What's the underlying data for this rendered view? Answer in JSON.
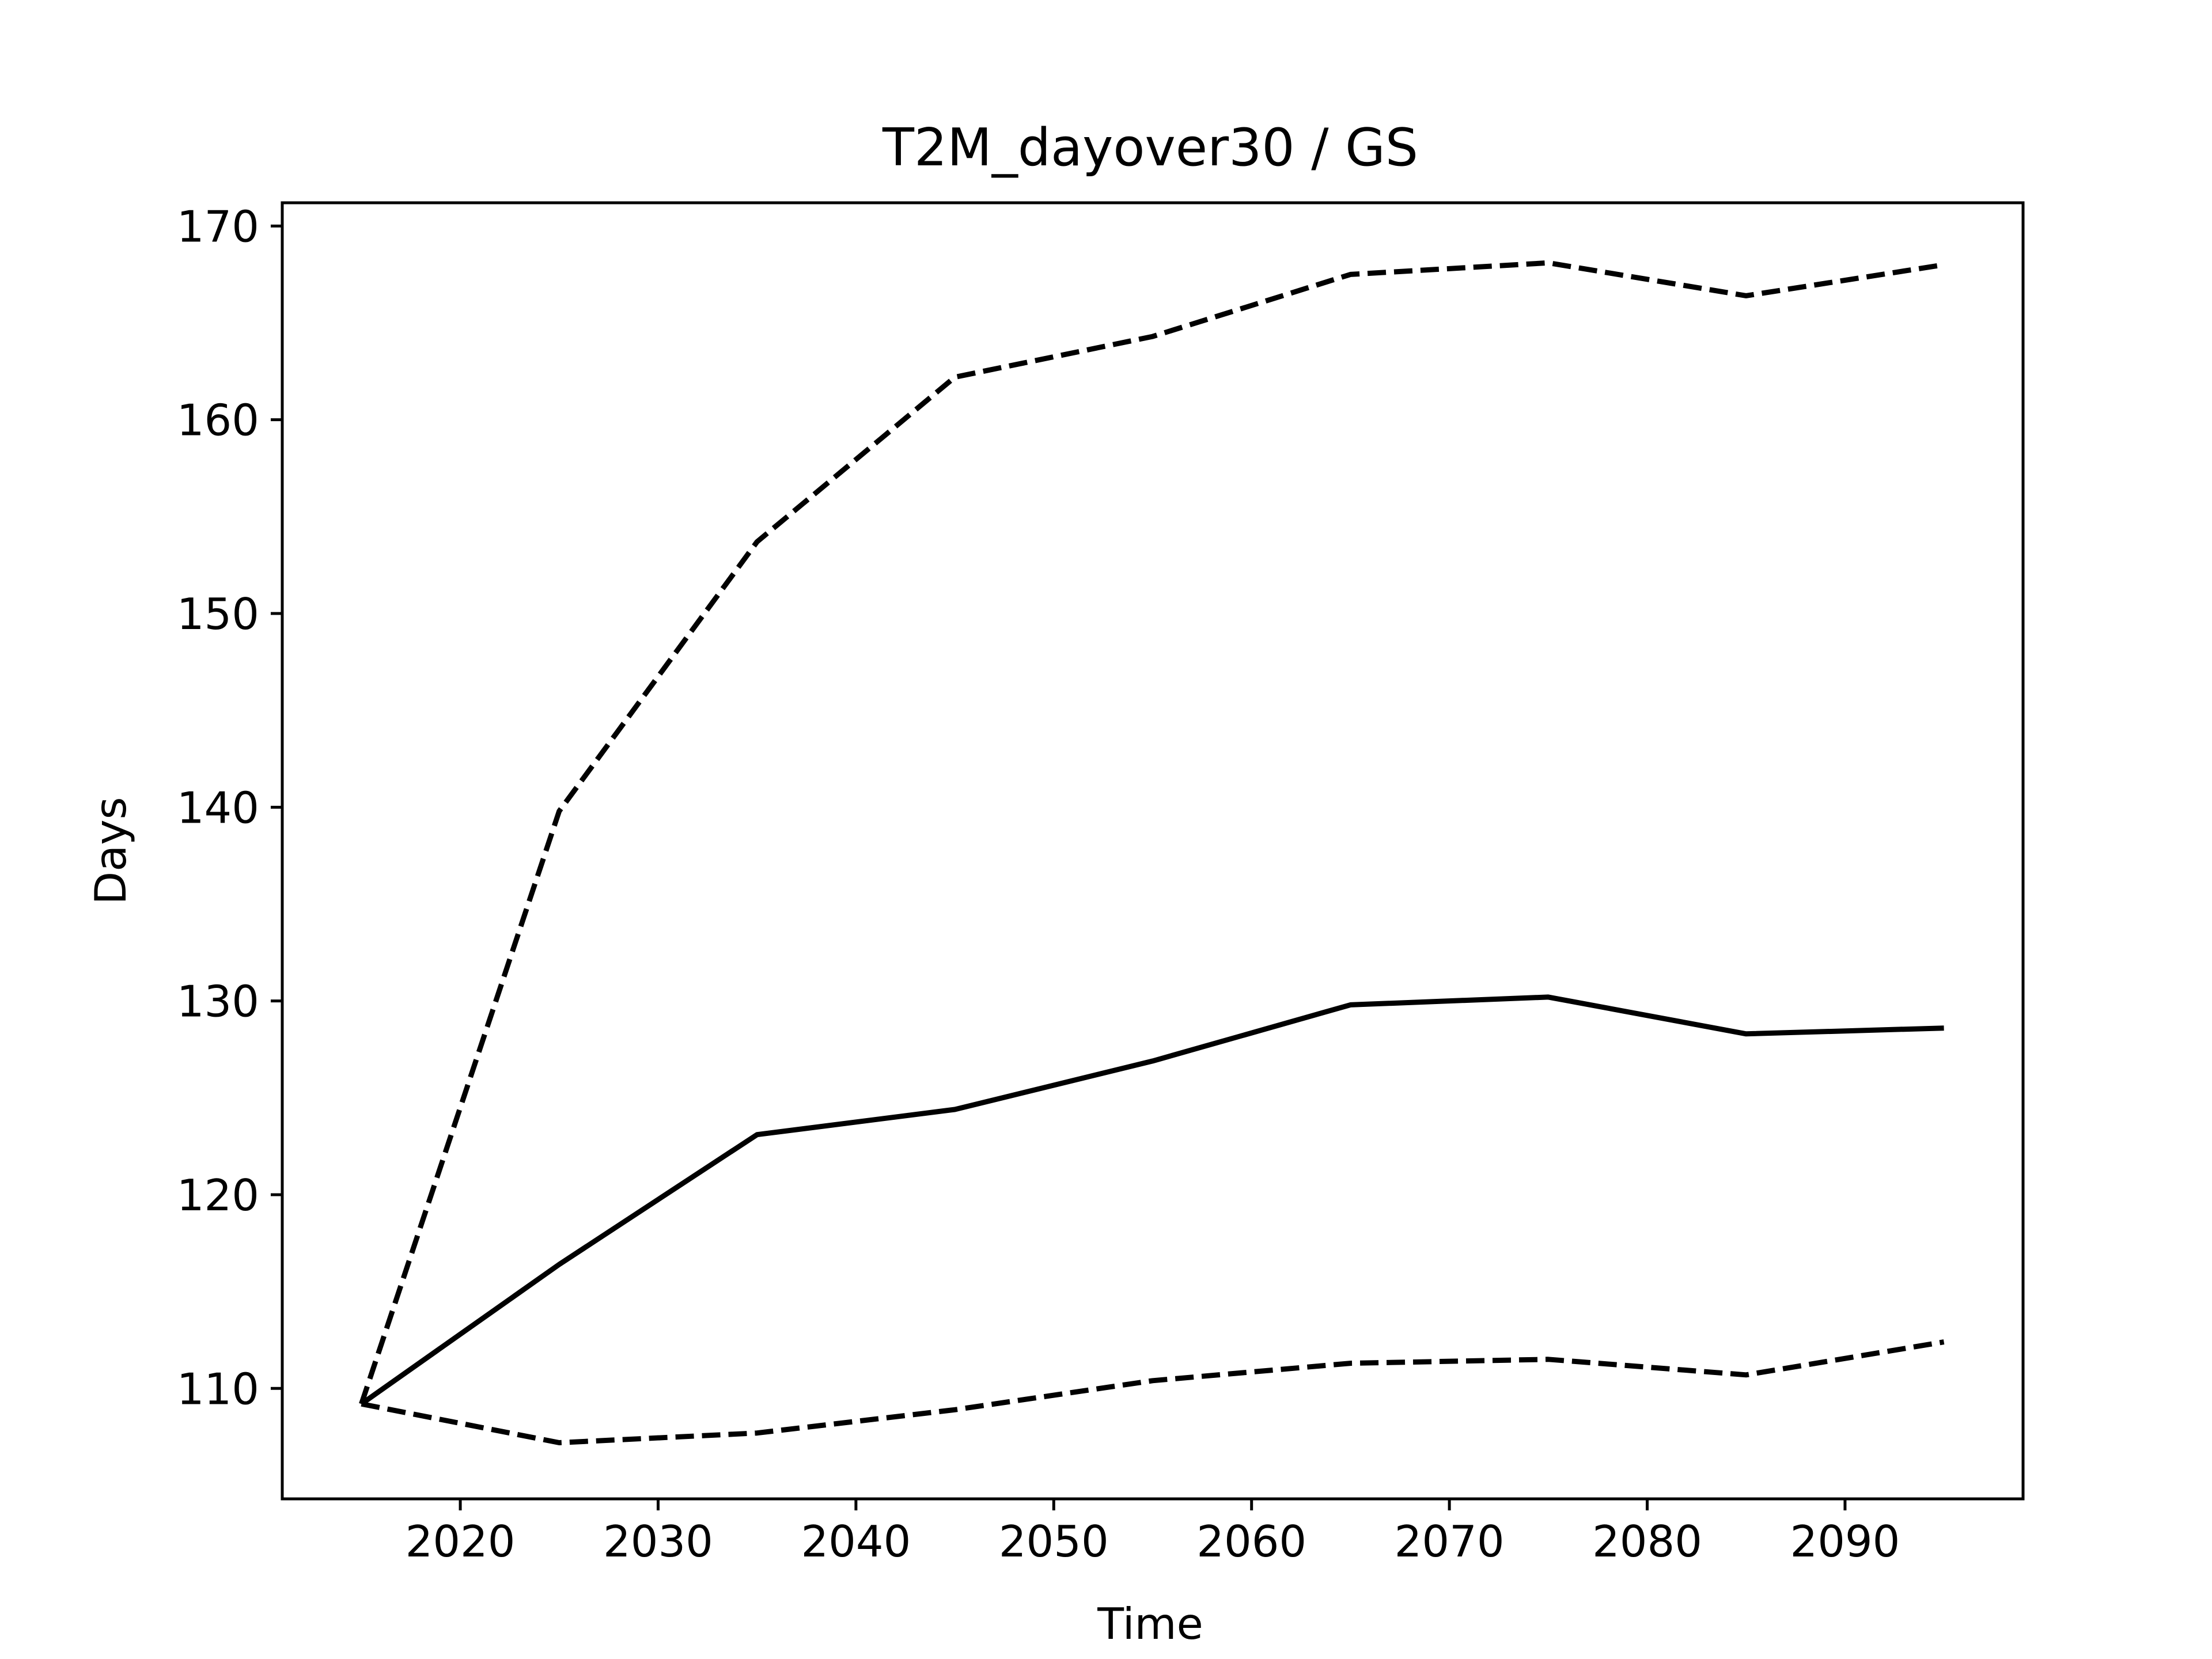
{
  "chart_data": {
    "type": "line",
    "title": "T2M_dayover30 / GS",
    "xlabel": "Time",
    "ylabel": "Days",
    "xlim": [
      2011,
      2099
    ],
    "ylim": [
      104.3,
      171.2
    ],
    "xticks": [
      2020,
      2030,
      2040,
      2050,
      2060,
      2070,
      2080,
      2090
    ],
    "yticks": [
      110,
      120,
      130,
      140,
      150,
      160,
      170
    ],
    "grid": false,
    "legend": "none",
    "line_color": "#000000",
    "series": [
      {
        "style": "solid",
        "x": [
          2015,
          2025,
          2035,
          2045,
          2055,
          2065,
          2075,
          2085,
          2095
        ],
        "y": [
          109.2,
          116.4,
          123.1,
          124.4,
          126.9,
          129.8,
          130.2,
          128.3,
          128.6
        ]
      },
      {
        "style": "dashed",
        "x": [
          2015,
          2025,
          2035,
          2045,
          2055,
          2065,
          2075,
          2085,
          2095
        ],
        "y": [
          109.2,
          139.8,
          153.7,
          162.2,
          164.3,
          167.5,
          168.1,
          166.4,
          168.0
        ]
      },
      {
        "style": "dashed",
        "x": [
          2015,
          2025,
          2035,
          2045,
          2055,
          2065,
          2075,
          2085,
          2095
        ],
        "y": [
          109.2,
          107.2,
          107.7,
          108.9,
          110.4,
          111.3,
          111.5,
          110.7,
          112.4
        ]
      }
    ]
  }
}
